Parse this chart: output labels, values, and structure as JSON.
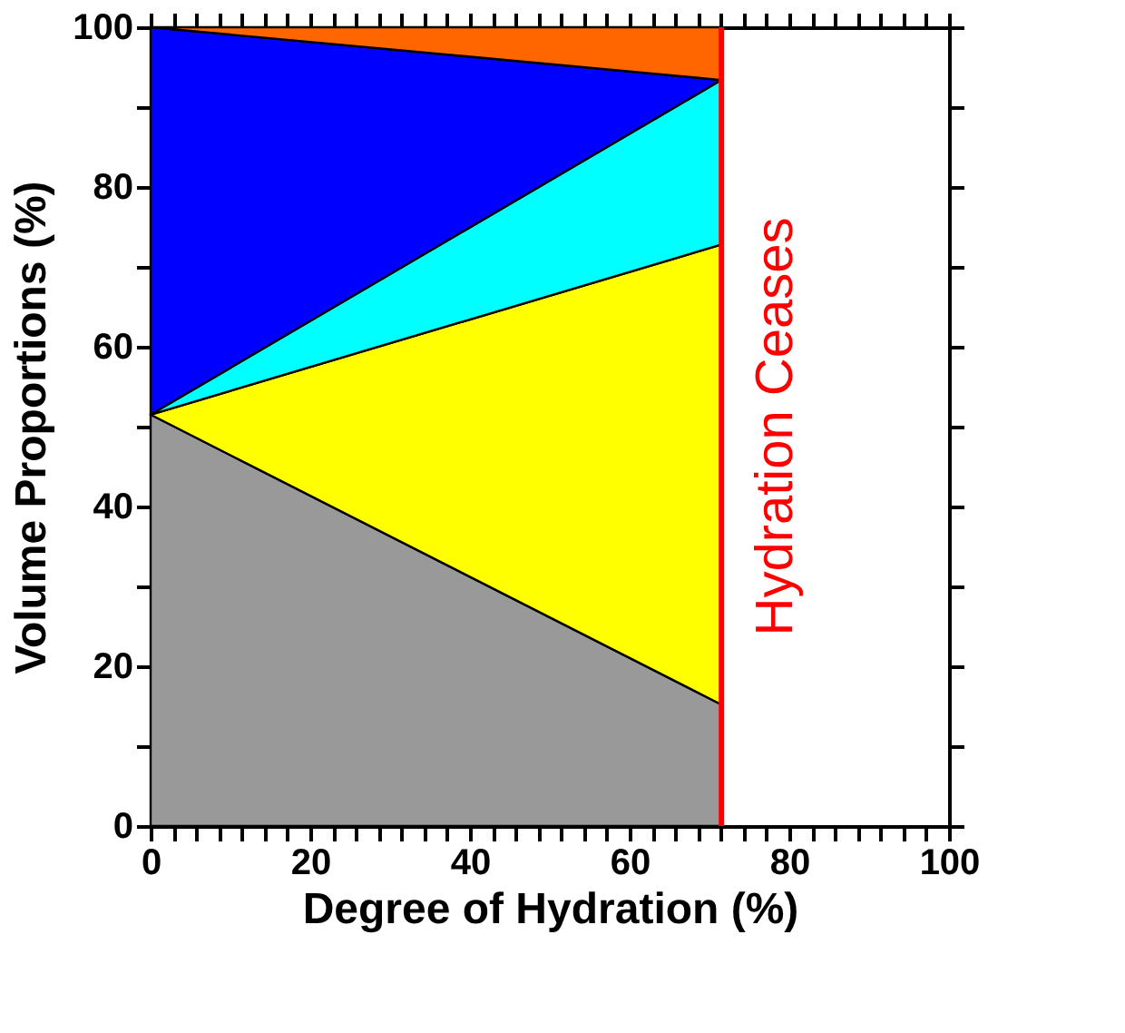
{
  "chart_data": {
    "type": "area",
    "stacked": true,
    "xlabel": "Degree of Hydration (%)",
    "ylabel": "Volume Proportions (%)",
    "x": [
      0,
      71.5
    ],
    "series": [
      {
        "color": "#999999",
        "values": [
          51.5,
          15.2
        ]
      },
      {
        "color": "#ffff00",
        "values": [
          0,
          57.6
        ]
      },
      {
        "color": "#00ffff",
        "values": [
          0,
          20.6
        ]
      },
      {
        "color": "#0000ff",
        "values": [
          48.5,
          0
        ]
      },
      {
        "color": "#ff6600",
        "values": [
          0,
          6.6
        ]
      }
    ],
    "xlim": [
      0,
      100
    ],
    "xticks": [
      0,
      {
        "value": 2.86,
        "label": null
      },
      {
        "value": 5.71,
        "label": null
      },
      {
        "value": 8.57,
        "label": null
      },
      {
        "value": 11.43,
        "label": null
      },
      {
        "value": 14.29,
        "label": null
      },
      {
        "value": 17.14,
        "label": null
      },
      20,
      {
        "value": 22.86,
        "label": null
      },
      {
        "value": 25.71,
        "label": null
      },
      {
        "value": 28.57,
        "label": null
      },
      {
        "value": 31.43,
        "label": null
      },
      {
        "value": 34.29,
        "label": null
      },
      {
        "value": 37.14,
        "label": null
      },
      40,
      {
        "value": 42.86,
        "label": null
      },
      {
        "value": 45.71,
        "label": null
      },
      {
        "value": 48.57,
        "label": null
      },
      {
        "value": 51.43,
        "label": null
      },
      {
        "value": 54.29,
        "label": null
      },
      {
        "value": 57.14,
        "label": null
      },
      60,
      {
        "value": 62.86,
        "label": null
      },
      {
        "value": 65.71,
        "label": null
      },
      {
        "value": 68.57,
        "label": null
      },
      {
        "value": 71.43,
        "label": null
      },
      {
        "value": 74.29,
        "label": null
      },
      {
        "value": 77.14,
        "label": null
      },
      80,
      {
        "value": 82.86,
        "label": null
      },
      {
        "value": 85.71,
        "label": null
      },
      {
        "value": 88.57,
        "label": null
      },
      {
        "value": 91.43,
        "label": null
      },
      {
        "value": 94.29,
        "label": null
      },
      {
        "value": 97.14,
        "label": null
      },
      100
    ],
    "ylim": [
      0,
      100
    ],
    "yticks": [
      0,
      {
        "value": 10,
        "label": null
      },
      20,
      {
        "value": 30,
        "label": null
      },
      40,
      {
        "value": 50,
        "label": null
      },
      60,
      {
        "value": 70,
        "label": null
      },
      80,
      {
        "value": 90,
        "label": null
      },
      100
    ],
    "ref_lines": [
      {
        "axis": "x",
        "value": 71.5,
        "label": "Hydration Ceases",
        "color": "#ff0000",
        "line_style": "solid"
      }
    ],
    "grid": false
  }
}
